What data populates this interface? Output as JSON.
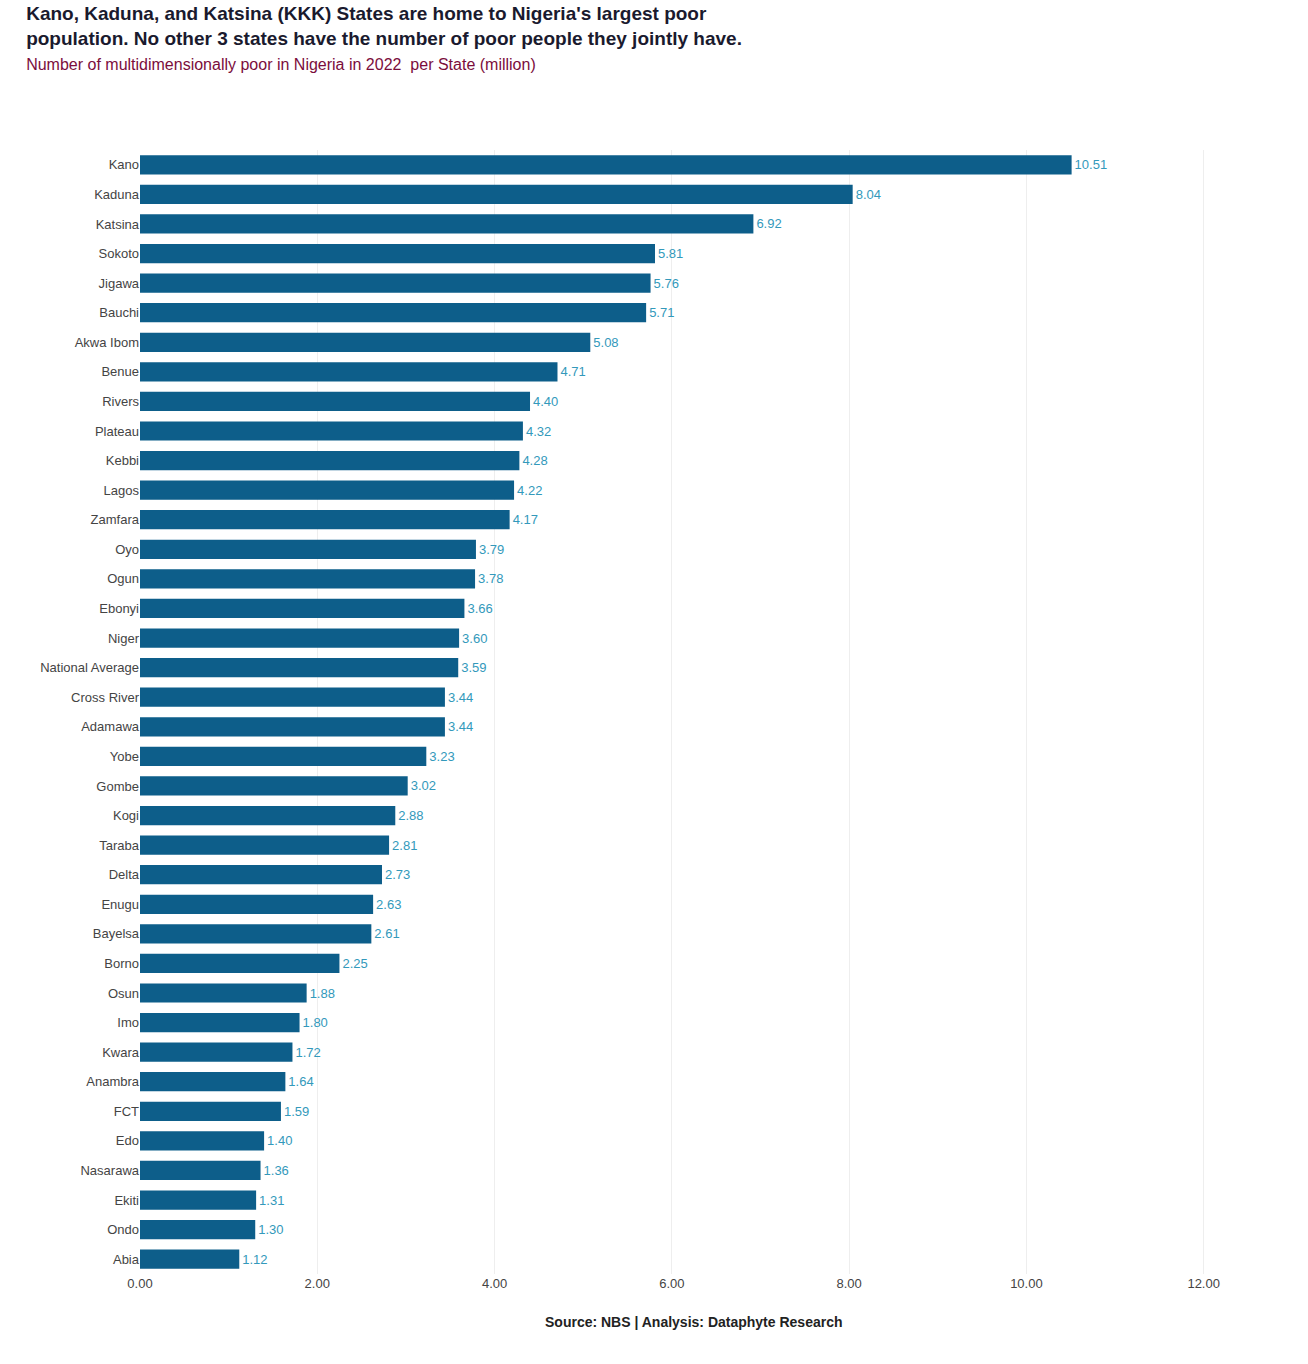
{
  "chart_data": {
    "type": "bar",
    "orientation": "horizontal",
    "title": "Kano, Kaduna, and Katsina (KKK) States are home to Nigeria's largest poor\npopulation. No other 3 states have the number of poor people they jointly have.",
    "subtitle": "Number of multidimensionally poor in Nigeria in 2022  per State (million)",
    "annotations": [
      "Source: NBS | Analysis: Dataphyte Research"
    ],
    "categories": [
      "Kano",
      "Kaduna",
      "Katsina",
      "Sokoto",
      "Jigawa",
      "Bauchi",
      "Akwa Ibom",
      "Benue",
      "Rivers",
      "Plateau",
      "Kebbi",
      "Lagos",
      "Zamfara",
      "Oyo",
      "Ogun",
      "Ebonyi",
      "Niger",
      "National Average",
      "Cross River",
      "Adamawa",
      "Yobe",
      "Gombe",
      "Kogi",
      "Taraba",
      "Delta",
      "Enugu",
      "Bayelsa",
      "Borno",
      "Osun",
      "Imo",
      "Kwara",
      "Anambra",
      "FCT",
      "Edo",
      "Nasarawa",
      "Ekiti",
      "Ondo",
      "Abia"
    ],
    "values": [
      10.51,
      8.04,
      6.92,
      5.81,
      5.76,
      5.71,
      5.08,
      4.71,
      4.4,
      4.32,
      4.28,
      4.22,
      4.17,
      3.79,
      3.78,
      3.66,
      3.6,
      3.59,
      3.44,
      3.44,
      3.23,
      3.02,
      2.88,
      2.81,
      2.73,
      2.63,
      2.61,
      2.25,
      1.88,
      1.8,
      1.72,
      1.64,
      1.59,
      1.4,
      1.36,
      1.31,
      1.3,
      1.12
    ],
    "value_labels": [
      "10.51",
      "8.04",
      "6.92",
      "5.81",
      "5.76",
      "5.71",
      "5.08",
      "4.71",
      "4.40",
      "4.32",
      "4.28",
      "4.22",
      "4.17",
      "3.79",
      "3.78",
      "3.66",
      "3.60",
      "3.59",
      "3.44",
      "3.44",
      "3.23",
      "3.02",
      "2.88",
      "2.81",
      "2.73",
      "2.63",
      "2.61",
      "2.25",
      "1.88",
      "1.80",
      "1.72",
      "1.64",
      "1.59",
      "1.40",
      "1.36",
      "1.31",
      "1.30",
      "1.12"
    ],
    "data_labels": true,
    "color": "#0D5E8A",
    "xlim": [
      0,
      12.5
    ],
    "xticks": [
      {
        "value": 0,
        "label": "0.00"
      },
      {
        "value": 2,
        "label": "2.00"
      },
      {
        "value": 4,
        "label": "4.00"
      },
      {
        "value": 6,
        "label": "6.00"
      },
      {
        "value": 8,
        "label": "8.00"
      },
      {
        "value": 10,
        "label": "10.00"
      },
      {
        "value": 12,
        "label": "12.00"
      }
    ],
    "grid": true
  }
}
